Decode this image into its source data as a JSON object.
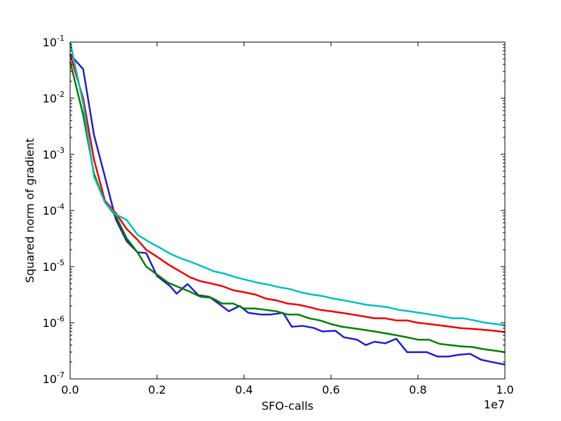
{
  "chart_data": {
    "type": "line",
    "title": "",
    "xlabel": "SFO-calls",
    "ylabel": "Squared norm of gradient",
    "x_offset_label": "1e7",
    "xlim": [
      0,
      1.0
    ],
    "ylim": [
      1e-07,
      0.1
    ],
    "yscale": "log",
    "grid": false,
    "legend": "none",
    "x_ticks": [
      {
        "value": 0.0,
        "label": "0.0"
      },
      {
        "value": 0.2,
        "label": "0.2"
      },
      {
        "value": 0.4,
        "label": "0.4"
      },
      {
        "value": 0.6,
        "label": "0.6"
      },
      {
        "value": 0.8,
        "label": "0.8"
      },
      {
        "value": 1.0,
        "label": "1.0"
      }
    ],
    "y_ticks": [
      {
        "value": 1e-07,
        "base": "10",
        "exp": "-7"
      },
      {
        "value": 1e-06,
        "base": "10",
        "exp": "-6"
      },
      {
        "value": 1e-05,
        "base": "10",
        "exp": "-5"
      },
      {
        "value": 0.0001,
        "base": "10",
        "exp": "-4"
      },
      {
        "value": 0.001,
        "base": "10",
        "exp": "-3"
      },
      {
        "value": 0.01,
        "base": "10",
        "exp": "-2"
      },
      {
        "value": 0.1,
        "base": "10",
        "exp": "-1"
      }
    ],
    "series": [
      {
        "color": "#1f1fcc",
        "x": [
          0.0,
          0.03,
          0.055,
          0.08,
          0.105,
          0.13,
          0.155,
          0.175,
          0.2,
          0.23,
          0.245,
          0.27,
          0.295,
          0.32,
          0.345,
          0.365,
          0.39,
          0.41,
          0.44,
          0.46,
          0.49,
          0.51,
          0.535,
          0.56,
          0.58,
          0.61,
          0.63,
          0.66,
          0.68,
          0.7,
          0.725,
          0.75,
          0.775,
          0.8,
          0.82,
          0.845,
          0.87,
          0.895,
          0.92,
          0.945,
          0.97,
          1.0
        ],
        "y": [
          0.06,
          0.033,
          0.0022,
          0.0004,
          7e-05,
          2.85e-05,
          1.8e-05,
          1.75e-05,
          6.8e-06,
          4.5e-06,
          3.3e-06,
          4.9e-06,
          3.1e-06,
          2.9e-06,
          2.1e-06,
          1.6e-06,
          2e-06,
          1.5e-06,
          1.4e-06,
          1.4e-06,
          1.5e-06,
          8.5e-07,
          8.8e-07,
          8.1e-07,
          7e-07,
          7.2e-07,
          5.5e-07,
          5e-07,
          4e-07,
          4.6e-07,
          4.3e-07,
          5.2e-07,
          3e-07,
          3e-07,
          3e-07,
          2.5e-07,
          2.5e-07,
          2.7e-07,
          2.8e-07,
          2.2e-07,
          2e-07,
          1.8e-07
        ]
      },
      {
        "color": "#ee0000",
        "x": [
          0.0,
          0.03,
          0.055,
          0.08,
          0.105,
          0.13,
          0.155,
          0.175,
          0.2,
          0.225,
          0.25,
          0.275,
          0.3,
          0.325,
          0.35,
          0.375,
          0.4,
          0.425,
          0.45,
          0.475,
          0.5,
          0.525,
          0.55,
          0.575,
          0.6,
          0.625,
          0.65,
          0.675,
          0.7,
          0.725,
          0.75,
          0.775,
          0.8,
          0.825,
          0.85,
          0.875,
          0.9,
          0.925,
          0.95,
          0.975,
          1.0
        ],
        "y": [
          0.06,
          0.01,
          0.0008,
          0.00015,
          9e-05,
          4.7e-05,
          3e-05,
          2e-05,
          1.5e-05,
          1.1e-05,
          8.5e-06,
          6.5e-06,
          5.5e-06,
          5e-06,
          4.5e-06,
          3.8e-06,
          3.5e-06,
          3.2e-06,
          2.7e-06,
          2.5e-06,
          2.2e-06,
          2.1e-06,
          1.9e-06,
          1.7e-06,
          1.6e-06,
          1.5e-06,
          1.4e-06,
          1.3e-06,
          1.2e-06,
          1.2e-06,
          1.1e-06,
          1.1e-06,
          1e-06,
          9.5e-07,
          9e-07,
          8.5e-07,
          8e-07,
          7.8e-07,
          7.5e-07,
          7.2e-07,
          6.8e-07
        ]
      },
      {
        "color": "#007f00",
        "x": [
          0.0,
          0.03,
          0.055,
          0.08,
          0.105,
          0.13,
          0.155,
          0.175,
          0.2,
          0.225,
          0.25,
          0.275,
          0.3,
          0.325,
          0.35,
          0.375,
          0.4,
          0.425,
          0.45,
          0.475,
          0.5,
          0.525,
          0.55,
          0.575,
          0.6,
          0.625,
          0.65,
          0.675,
          0.7,
          0.725,
          0.75,
          0.775,
          0.8,
          0.825,
          0.85,
          0.875,
          0.9,
          0.925,
          0.95,
          0.975,
          1.0
        ],
        "y": [
          0.045,
          0.005,
          0.00045,
          0.00014,
          8e-05,
          3.2e-05,
          1.8e-05,
          1e-05,
          7.2e-06,
          5.2e-06,
          4.3e-06,
          3.6e-06,
          2.9e-06,
          2.8e-06,
          2.2e-06,
          2.2e-06,
          1.8e-06,
          1.8e-06,
          1.7e-06,
          1.6e-06,
          1.4e-06,
          1.4e-06,
          1.2e-06,
          1.1e-06,
          9.5e-07,
          8.5e-07,
          8e-07,
          7.5e-07,
          7e-07,
          6.5e-07,
          6e-07,
          5.5e-07,
          5e-07,
          5e-07,
          4.2e-07,
          4e-07,
          3.8e-07,
          3.7e-07,
          3.4e-07,
          3.2e-07,
          3e-07
        ]
      },
      {
        "color": "#00bfbf",
        "x": [
          0.0,
          0.03,
          0.055,
          0.08,
          0.105,
          0.13,
          0.155,
          0.18,
          0.205,
          0.23,
          0.255,
          0.28,
          0.305,
          0.33,
          0.355,
          0.38,
          0.405,
          0.43,
          0.455,
          0.48,
          0.505,
          0.53,
          0.555,
          0.58,
          0.605,
          0.63,
          0.655,
          0.68,
          0.705,
          0.73,
          0.755,
          0.78,
          0.805,
          0.83,
          0.855,
          0.88,
          0.905,
          0.93,
          0.955,
          0.98,
          1.0
        ],
        "y": [
          0.1,
          0.008,
          0.0004,
          0.00014,
          8.5e-05,
          6.8e-05,
          3.7e-05,
          2.8e-05,
          2.2e-05,
          1.7e-05,
          1.4e-05,
          1.2e-05,
          1e-05,
          8.3e-06,
          7.5e-06,
          6.5e-06,
          5.8e-06,
          5.2e-06,
          4.8e-06,
          4.3e-06,
          4e-06,
          3.5e-06,
          3.2e-06,
          3e-06,
          2.7e-06,
          2.5e-06,
          2.3e-06,
          2.1e-06,
          2e-06,
          1.9e-06,
          1.7e-06,
          1.6e-06,
          1.5e-06,
          1.4e-06,
          1.3e-06,
          1.2e-06,
          1.2e-06,
          1.1e-06,
          1e-06,
          9.5e-07,
          9e-07
        ]
      }
    ]
  }
}
